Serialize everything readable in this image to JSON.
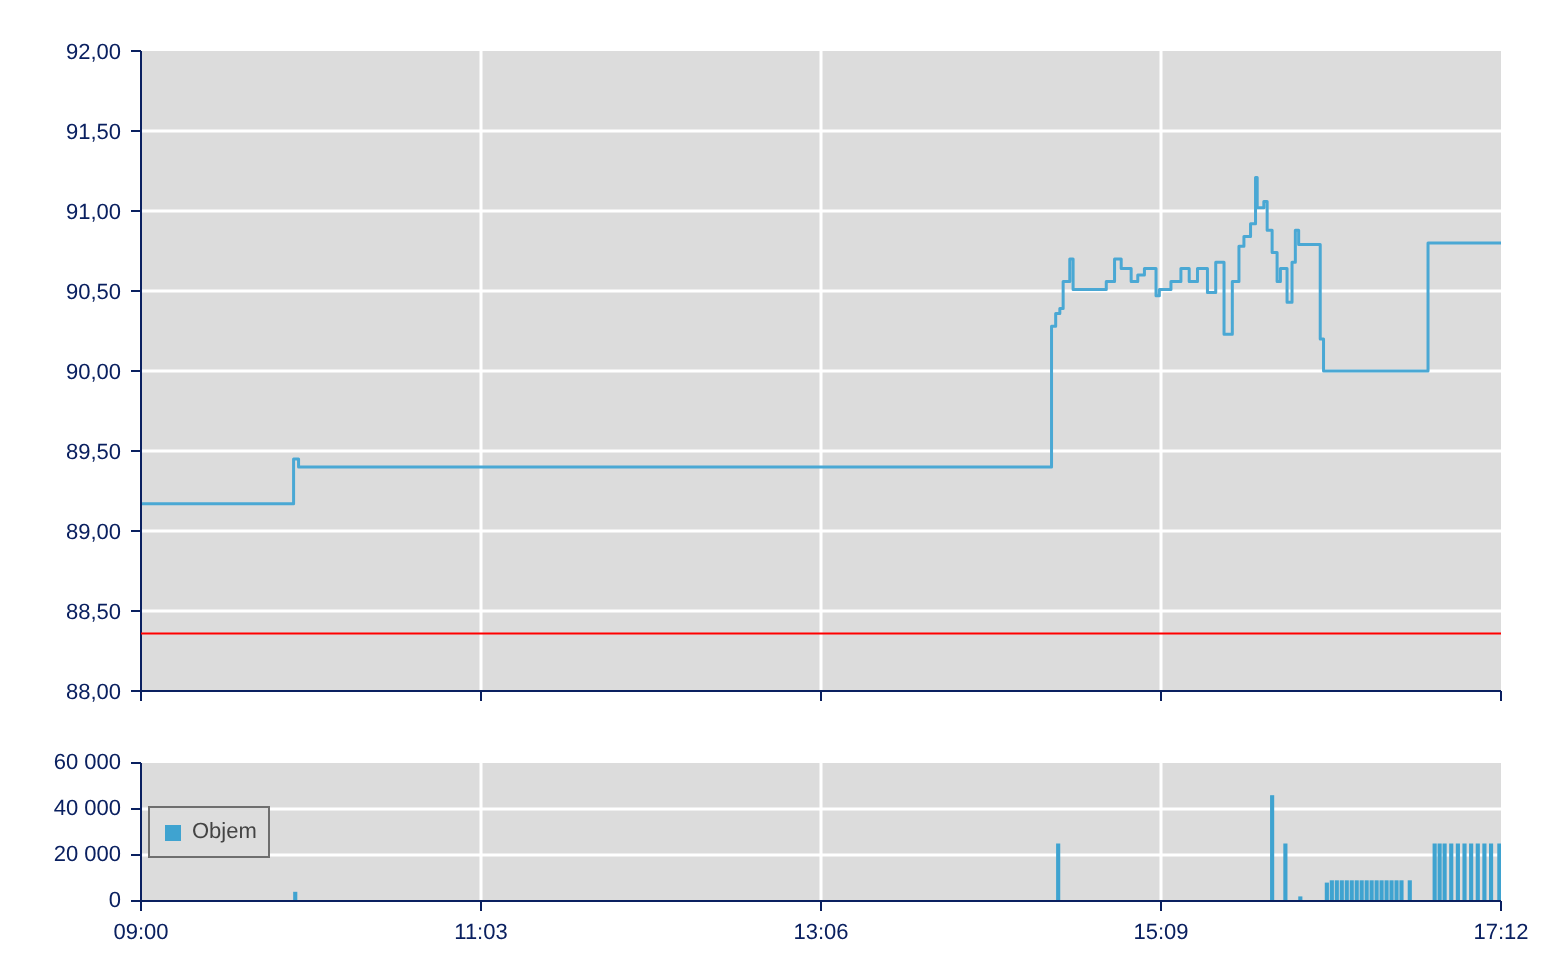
{
  "chart_data": [
    {
      "type": "step",
      "color": "#4aa8d4",
      "x": [
        9.0,
        9.92,
        9.95,
        14.49,
        14.515,
        14.54,
        14.56,
        14.6,
        14.62,
        14.82,
        14.87,
        14.91,
        14.97,
        15.01,
        15.05,
        15.12,
        15.14,
        15.21,
        15.27,
        15.32,
        15.37,
        15.43,
        15.48,
        15.53,
        15.58,
        15.62,
        15.65,
        15.69,
        15.72,
        15.73,
        15.77,
        15.79,
        15.82,
        15.85,
        15.87,
        15.91,
        15.94,
        15.96,
        15.98,
        16.11,
        16.13,
        16.76,
        17.2
      ],
      "values": [
        89.17,
        89.45,
        89.4,
        90.28,
        90.36,
        90.39,
        90.56,
        90.7,
        90.51,
        90.56,
        90.7,
        90.64,
        90.56,
        90.6,
        90.64,
        90.47,
        90.51,
        90.56,
        90.64,
        90.56,
        90.64,
        90.49,
        90.68,
        90.23,
        90.56,
        90.78,
        90.84,
        90.92,
        91.21,
        91.02,
        91.06,
        90.88,
        90.74,
        90.56,
        90.64,
        90.43,
        90.68,
        90.88,
        90.79,
        90.2,
        90.0,
        90.8,
        90.8
      ],
      "xlim": [
        9.0,
        17.2
      ],
      "xticks": [
        {
          "value": 9.0,
          "label": null
        },
        {
          "value": 11.05,
          "label": null
        },
        {
          "value": 13.1,
          "label": null
        },
        {
          "value": 15.15,
          "label": null
        },
        {
          "value": 17.2,
          "label": null
        }
      ],
      "ylim": [
        88,
        92
      ],
      "yticks": [
        {
          "value": 88,
          "label": "88,00"
        },
        {
          "value": 88.5,
          "label": "88,50"
        },
        {
          "value": 89,
          "label": "89,00"
        },
        {
          "value": 89.5,
          "label": "89,50"
        },
        {
          "value": 90,
          "label": "90,00"
        },
        {
          "value": 90.5,
          "label": "90,50"
        },
        {
          "value": 91,
          "label": "91,00"
        },
        {
          "value": 91.5,
          "label": "91,50"
        },
        {
          "value": 92,
          "label": "92,00"
        }
      ],
      "ref_lines": [
        {
          "axis": "y",
          "value": 88.36,
          "color": "#ff0000"
        }
      ],
      "grid": true,
      "tick_labels": "y"
    },
    {
      "type": "bar",
      "series": [
        {
          "name": "Objem",
          "color": "#3fa3d0",
          "x": [
            9.93,
            14.53,
            15.82,
            15.9,
            15.99,
            16.15,
            16.18,
            16.21,
            16.24,
            16.27,
            16.3,
            16.33,
            16.36,
            16.39,
            16.42,
            16.45,
            16.48,
            16.51,
            16.54,
            16.57,
            16.6,
            16.65,
            16.8,
            16.83,
            16.86,
            16.9,
            16.94,
            16.98,
            17.02,
            17.06,
            17.1,
            17.14,
            17.19
          ],
          "values": [
            4000,
            25000,
            46000,
            25000,
            2000,
            8000,
            9000,
            9000,
            9000,
            9000,
            9000,
            9000,
            9000,
            9000,
            9000,
            9000,
            9000,
            9000,
            9000,
            9000,
            9000,
            9000,
            25000,
            25000,
            25000,
            25000,
            25000,
            25000,
            25000,
            25000,
            25000,
            25000,
            25000
          ]
        }
      ],
      "xlim": [
        9.0,
        17.2
      ],
      "xticks": [
        {
          "value": 9.0,
          "label": "09:00"
        },
        {
          "value": 11.05,
          "label": "11:03"
        },
        {
          "value": 13.1,
          "label": "13:06"
        },
        {
          "value": 15.15,
          "label": "15:09"
        },
        {
          "value": 17.2,
          "label": "17:12"
        }
      ],
      "ylim": [
        0,
        60000
      ],
      "yticks": [
        {
          "value": 0,
          "label": "0"
        },
        {
          "value": 20000,
          "label": "20 000"
        },
        {
          "value": 40000,
          "label": "40 000"
        },
        {
          "value": 60000,
          "label": "60 000"
        }
      ],
      "grid": true,
      "legend": "left"
    }
  ]
}
